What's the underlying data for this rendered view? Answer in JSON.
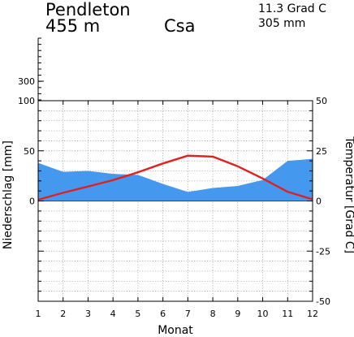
{
  "header": {
    "station": "Pendleton",
    "elevation": "455 m",
    "climate_class": "Csa",
    "annual_temp": "11.3 Grad C",
    "annual_precip": "305 mm"
  },
  "chart_data": {
    "type": "area",
    "xlabel": "Monat",
    "ylabel_left": "Niederschlag [mm]",
    "ylabel_right": "Temperatur [Grad C]",
    "x": [
      1,
      2,
      3,
      4,
      5,
      6,
      7,
      8,
      9,
      10,
      11,
      12
    ],
    "x_ticks": [
      "1",
      "2",
      "3",
      "4",
      "5",
      "6",
      "7",
      "8",
      "9",
      "10",
      "11",
      "12"
    ],
    "precip_ylim": [
      -100,
      100
    ],
    "precip_upper_ticks": [
      "300"
    ],
    "precip_ticks": [
      "100",
      "50",
      "0"
    ],
    "temp_ylim": [
      -50,
      50
    ],
    "temp_ticks": [
      "50",
      "25",
      "0",
      "-25",
      "-50"
    ],
    "grid": true,
    "series": [
      {
        "kind": "precipitation",
        "color": "#4499ee",
        "values": [
          38,
          29,
          30,
          27,
          26,
          17,
          9,
          13,
          15,
          21,
          40,
          42
        ]
      },
      {
        "kind": "temperature",
        "color": "#dd2222",
        "values": [
          0.6,
          4.1,
          7.2,
          10.4,
          14.3,
          18.7,
          22.6,
          22.1,
          17.3,
          11.2,
          4.6,
          0.8
        ]
      }
    ]
  }
}
